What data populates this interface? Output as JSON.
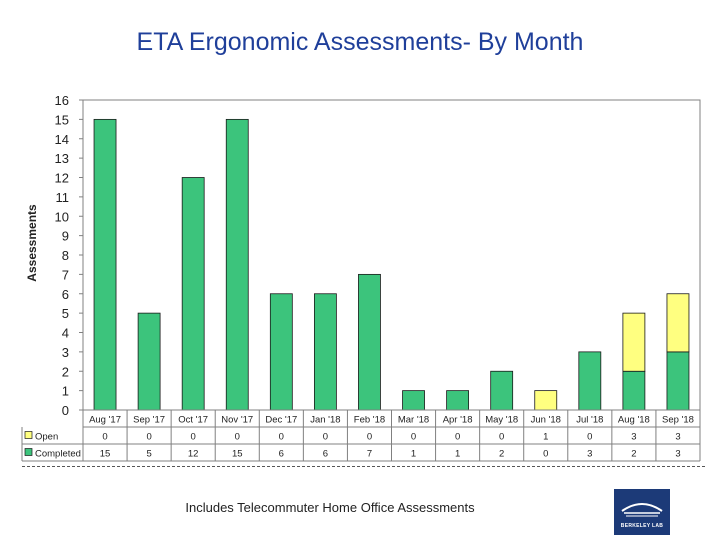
{
  "chart_data": {
    "type": "bar",
    "stacked": true,
    "title": "ETA Ergonomic Assessments- By Month",
    "ylabel": "Assessments",
    "xlabel": "",
    "ylim": [
      0,
      16
    ],
    "yticks": [
      "0",
      "1",
      "2",
      "3",
      "4",
      "5",
      "6",
      "7",
      "8",
      "9",
      "10",
      "11",
      "12",
      "13",
      "14",
      "15",
      "16"
    ],
    "categories": [
      "Aug '17",
      "Sep '17",
      "Oct '17",
      "Nov '17",
      "Dec '17",
      "Jan '18",
      "Feb '18",
      "Mar '18",
      "Apr '18",
      "May '18",
      "Jun '18",
      "Jul '18",
      "Aug '18",
      "Sep '18"
    ],
    "series": [
      {
        "name": "Completed",
        "color": "#3cc47c",
        "values": [
          15,
          5,
          12,
          15,
          6,
          6,
          7,
          1,
          1,
          2,
          0,
          3,
          2,
          3
        ]
      },
      {
        "name": "Open",
        "color": "#ffff80",
        "values": [
          0,
          0,
          0,
          0,
          0,
          0,
          0,
          0,
          0,
          0,
          1,
          0,
          3,
          3
        ]
      }
    ],
    "table_rows": [
      "Open",
      "Completed"
    ]
  },
  "footnote": "Includes Telecommuter Home Office Assessments",
  "logo": {
    "text": "BERKELEY LAB"
  }
}
